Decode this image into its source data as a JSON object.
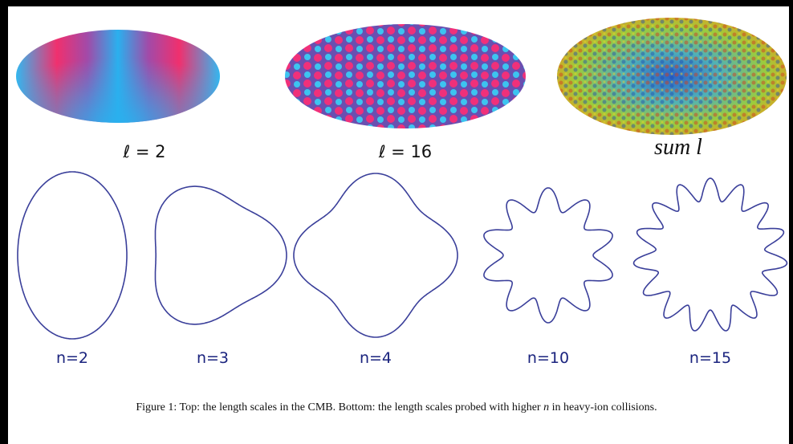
{
  "figure": {
    "maps": [
      {
        "label": "ℓ = 2"
      },
      {
        "label": "ℓ = 16"
      },
      {
        "label": "sum l"
      }
    ],
    "shapes": [
      {
        "label": "n=2"
      },
      {
        "label": "n=3"
      },
      {
        "label": "n=4"
      },
      {
        "label": "n=10"
      },
      {
        "label": "n=15"
      }
    ],
    "caption": {
      "text": "Figure 1:  Top: the length scales in the CMB. Bottom: the length scales probed with higher ",
      "emphasis": "n",
      "tail": " in heavy-ion collisions."
    }
  }
}
